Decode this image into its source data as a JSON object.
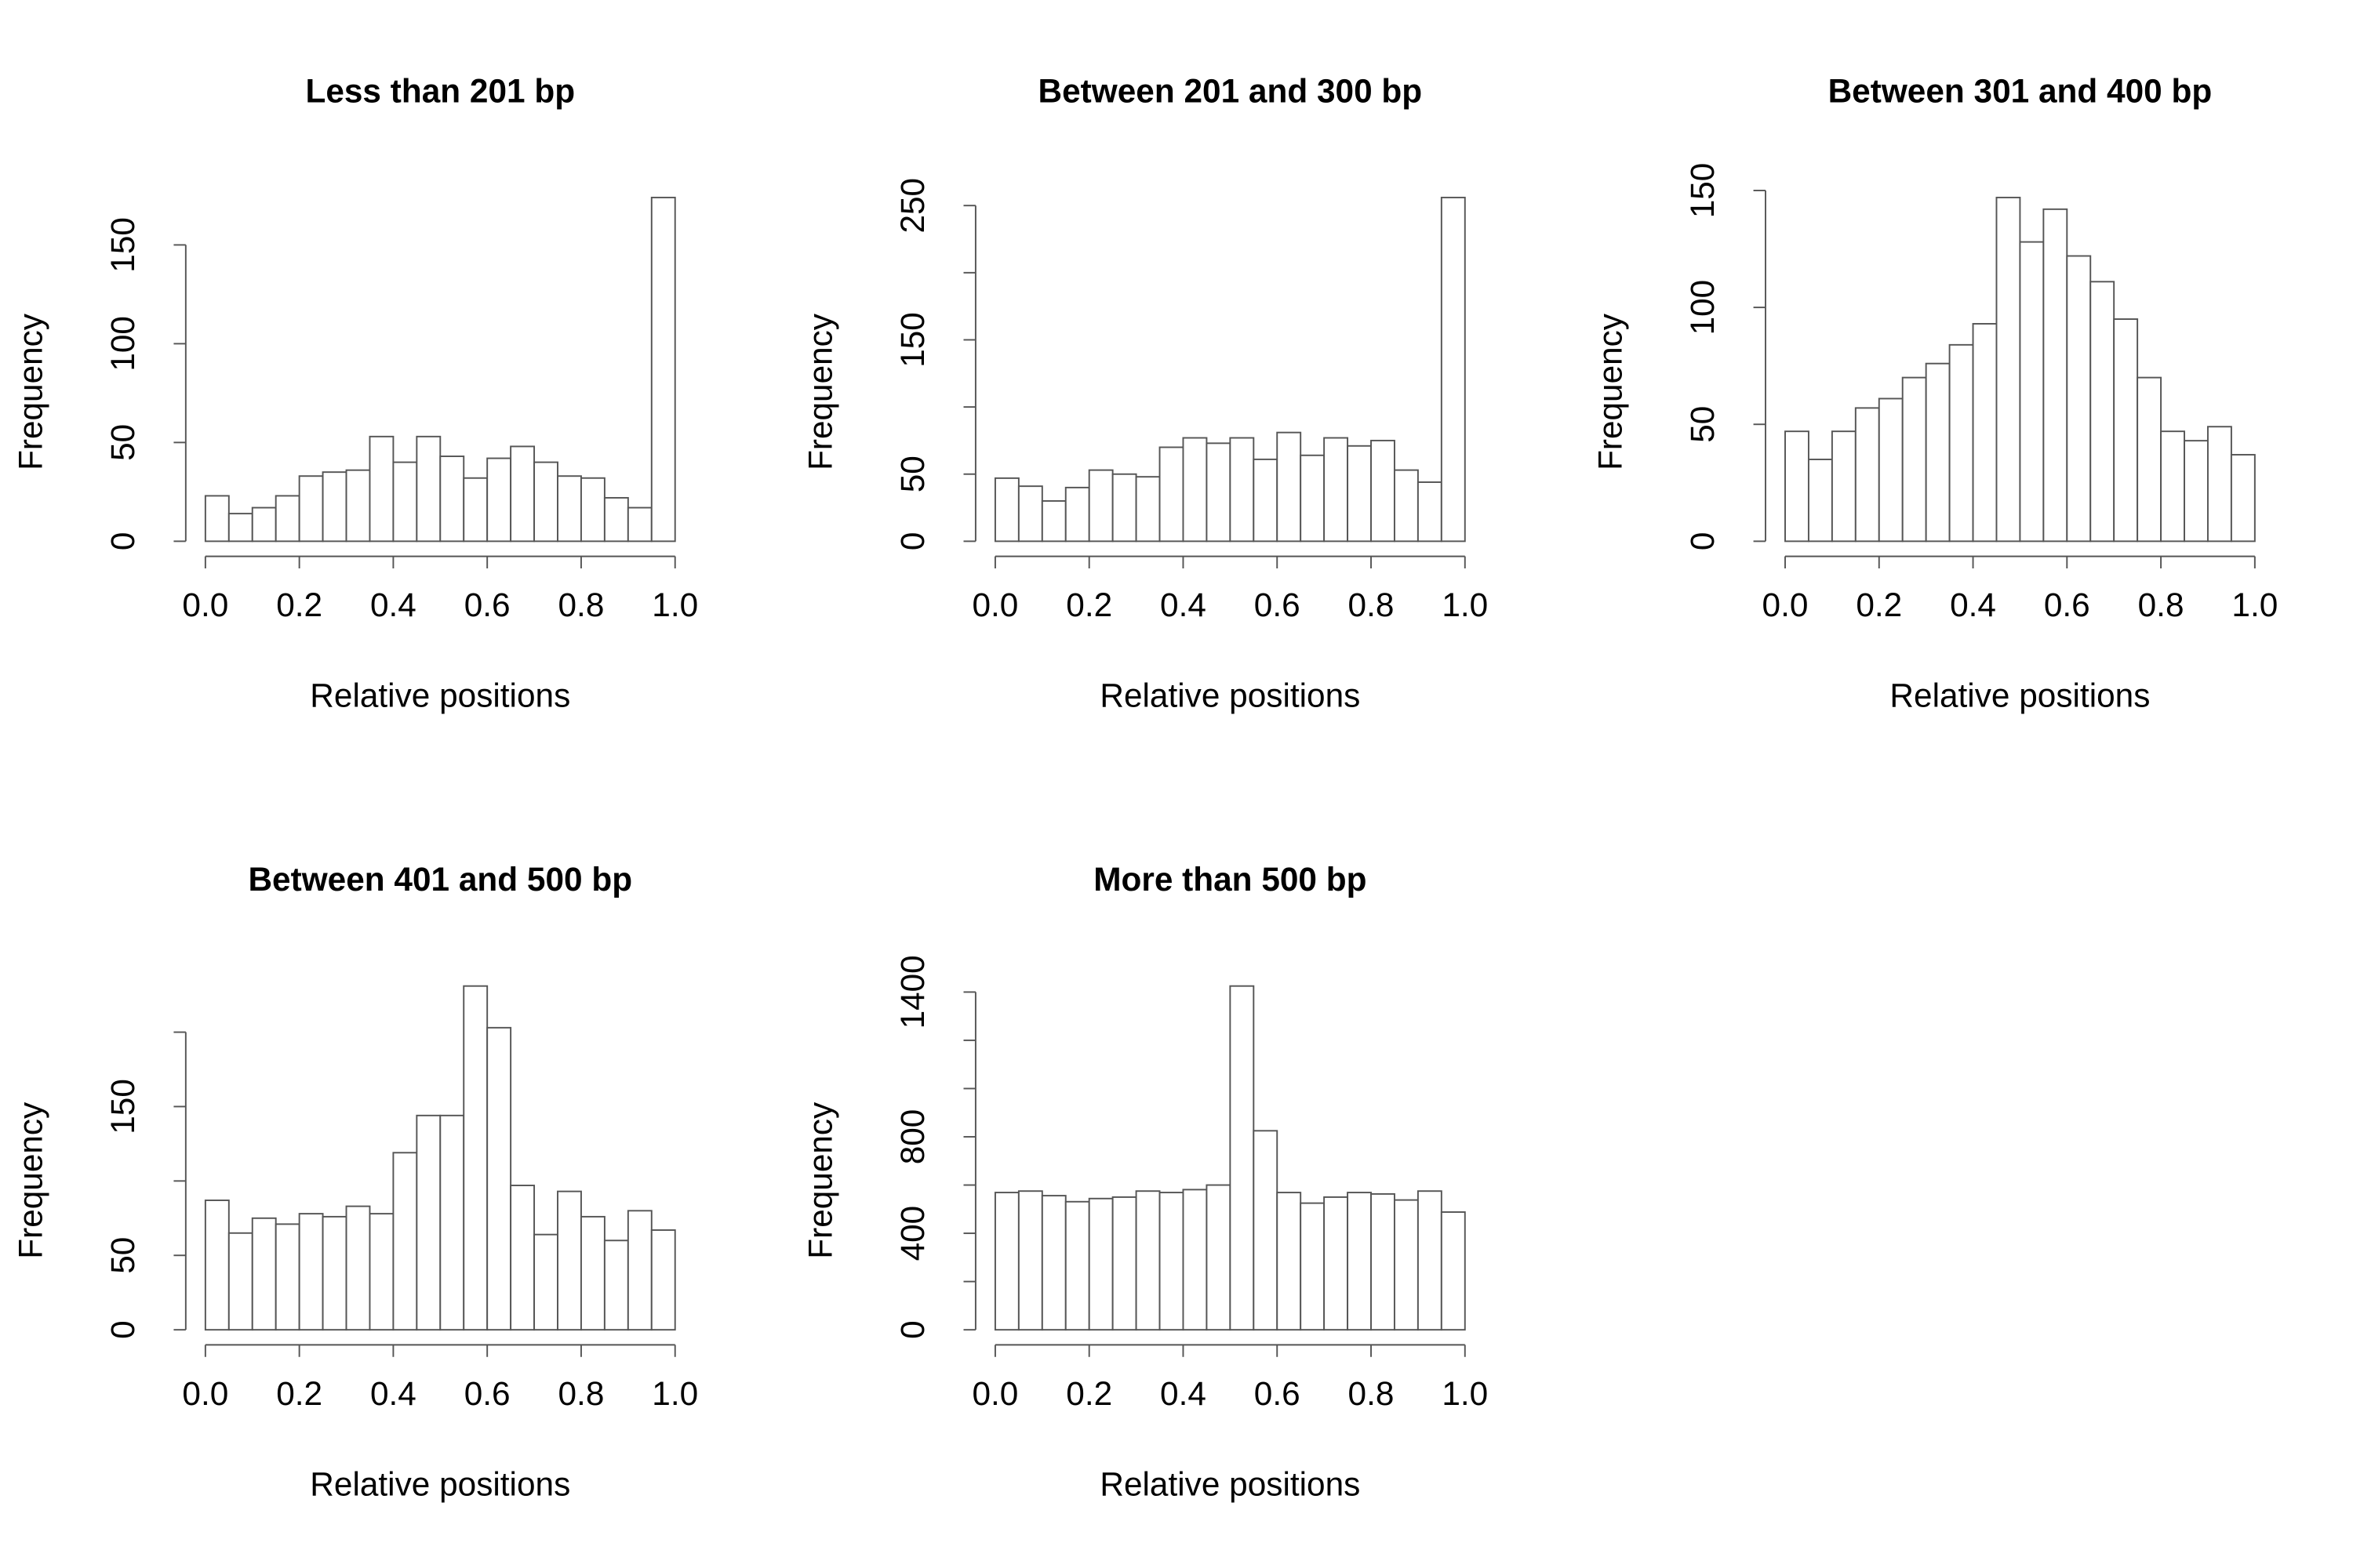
{
  "chart_data": [
    {
      "type": "histogram",
      "title": "Less than 201 bp",
      "xlabel": "Relative positions",
      "ylabel": "Frequency",
      "color": "#ffffff",
      "bins": [
        0,
        0.05,
        0.1,
        0.15,
        0.2,
        0.25,
        0.3,
        0.35,
        0.4,
        0.45,
        0.5,
        0.55,
        0.6,
        0.65,
        0.7,
        0.75,
        0.8,
        0.85,
        0.9,
        0.95,
        1
      ],
      "values": [
        23,
        14,
        17,
        23,
        33,
        35,
        36,
        53,
        40,
        53,
        43,
        32,
        42,
        48,
        40,
        33,
        32,
        22,
        17,
        174
      ],
      "xlim": [
        0,
        1
      ],
      "xticks": [
        {
          "value": 0,
          "label": "0.0"
        },
        0.2,
        0.4,
        0.6,
        0.8,
        {
          "value": 1,
          "label": "1.0"
        }
      ],
      "ylim": [
        0,
        174
      ],
      "yticks": [
        0,
        50,
        100,
        150
      ]
    },
    {
      "type": "histogram",
      "title": "Between 201 and 300 bp",
      "xlabel": "Relative positions",
      "ylabel": "Frequency",
      "color": "#ffffff",
      "bins": [
        0,
        0.05,
        0.1,
        0.15,
        0.2,
        0.25,
        0.3,
        0.35,
        0.4,
        0.45,
        0.5,
        0.55,
        0.6,
        0.65,
        0.7,
        0.75,
        0.8,
        0.85,
        0.9,
        0.95,
        1
      ],
      "values": [
        47,
        41,
        30,
        40,
        53,
        50,
        48,
        70,
        77,
        73,
        77,
        61,
        81,
        64,
        77,
        71,
        75,
        53,
        44,
        256
      ],
      "xlim": [
        0,
        1
      ],
      "xticks": [
        {
          "value": 0,
          "label": "0.0"
        },
        0.2,
        0.4,
        0.6,
        0.8,
        {
          "value": 1,
          "label": "1.0"
        }
      ],
      "ylim": [
        0,
        256
      ],
      "yticks": [
        0,
        50,
        {
          "value": 100,
          "label": null
        },
        150,
        {
          "value": 200,
          "label": null
        },
        250
      ]
    },
    {
      "type": "histogram",
      "title": "Between 301 and 400 bp",
      "xlabel": "Relative positions",
      "ylabel": "Frequency",
      "color": "#ffffff",
      "bins": [
        0,
        0.05,
        0.1,
        0.15,
        0.2,
        0.25,
        0.3,
        0.35,
        0.4,
        0.45,
        0.5,
        0.55,
        0.6,
        0.65,
        0.7,
        0.75,
        0.8,
        0.85,
        0.9,
        0.95,
        1
      ],
      "values": [
        47,
        35,
        47,
        57,
        61,
        70,
        76,
        84,
        93,
        147,
        128,
        142,
        122,
        111,
        95,
        70,
        47,
        43,
        49,
        37
      ],
      "xlim": [
        0,
        1
      ],
      "xticks": [
        {
          "value": 0,
          "label": "0.0"
        },
        0.2,
        0.4,
        0.6,
        0.8,
        {
          "value": 1,
          "label": "1.0"
        }
      ],
      "ylim": [
        0,
        147
      ],
      "yticks": [
        0,
        50,
        100,
        150
      ]
    },
    {
      "type": "histogram",
      "title": "Between 401 and 500 bp",
      "xlabel": "Relative positions",
      "ylabel": "Frequency",
      "color": "#ffffff",
      "bins": [
        0,
        0.05,
        0.1,
        0.15,
        0.2,
        0.25,
        0.3,
        0.35,
        0.4,
        0.45,
        0.5,
        0.55,
        0.6,
        0.65,
        0.7,
        0.75,
        0.8,
        0.85,
        0.9,
        0.95,
        1
      ],
      "values": [
        87,
        65,
        75,
        71,
        78,
        76,
        83,
        78,
        119,
        144,
        144,
        231,
        203,
        97,
        64,
        93,
        76,
        60,
        80,
        67
      ],
      "xlim": [
        0,
        1
      ],
      "xticks": [
        {
          "value": 0,
          "label": "0.0"
        },
        0.2,
        0.4,
        0.6,
        0.8,
        {
          "value": 1,
          "label": "1.0"
        }
      ],
      "ylim": [
        0,
        231
      ],
      "yticks": [
        0,
        50,
        {
          "value": 100,
          "label": null
        },
        150,
        {
          "value": 200,
          "label": null
        }
      ]
    },
    {
      "type": "histogram",
      "title": "More than 500 bp",
      "xlabel": "Relative positions",
      "ylabel": "Frequency",
      "color": "#ffffff",
      "bins": [
        0,
        0.05,
        0.1,
        0.15,
        0.2,
        0.25,
        0.3,
        0.35,
        0.4,
        0.45,
        0.5,
        0.55,
        0.6,
        0.65,
        0.7,
        0.75,
        0.8,
        0.85,
        0.9,
        0.95,
        1
      ],
      "values": [
        569,
        575,
        556,
        531,
        544,
        550,
        575,
        569,
        581,
        600,
        1425,
        825,
        569,
        525,
        550,
        569,
        563,
        538,
        575,
        488
      ],
      "xlim": [
        0,
        1
      ],
      "xticks": [
        {
          "value": 0,
          "label": "0.0"
        },
        0.2,
        0.4,
        0.6,
        0.8,
        {
          "value": 1,
          "label": "1.0"
        }
      ],
      "ylim": [
        0,
        1425
      ],
      "yticks": [
        0,
        {
          "value": 200,
          "label": null
        },
        400,
        {
          "value": 600,
          "label": null
        },
        800,
        {
          "value": 1000,
          "label": null
        },
        {
          "value": 1200,
          "label": null
        },
        1400
      ]
    }
  ]
}
